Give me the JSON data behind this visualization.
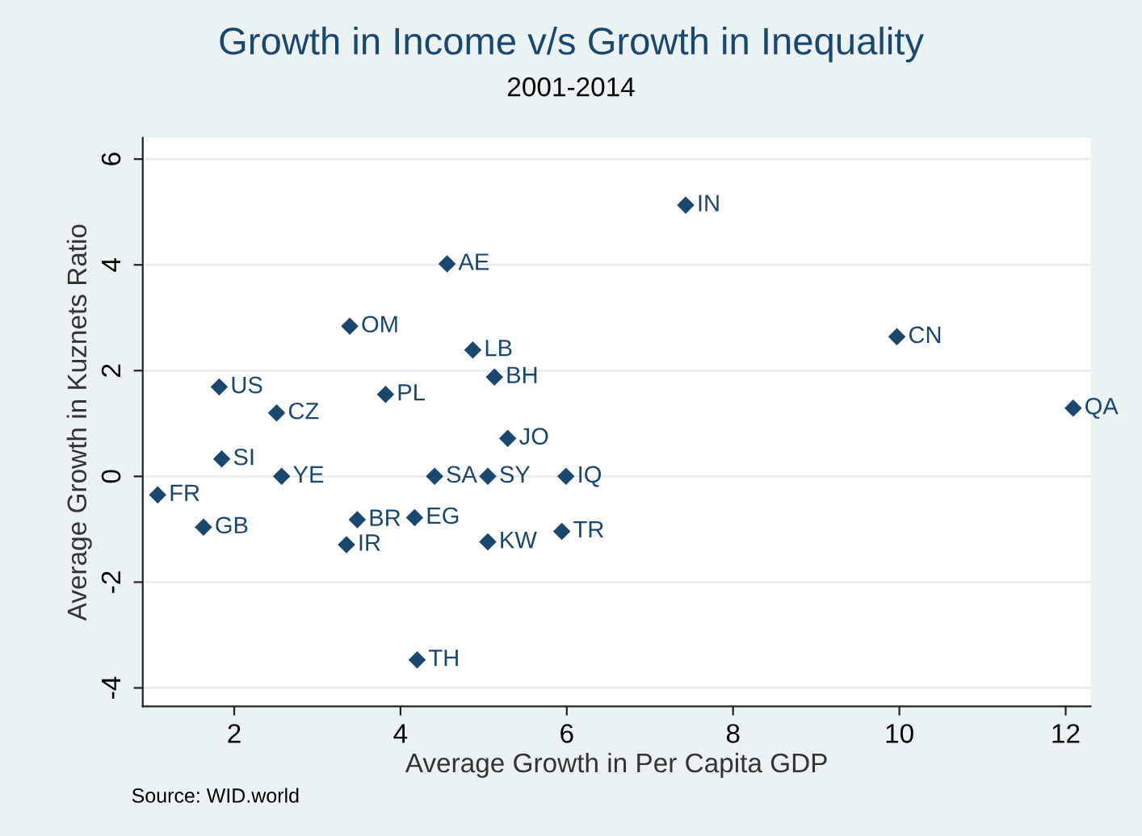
{
  "chart_data": {
    "type": "scatter",
    "title": "Growth in Income v/s Growth in Inequality",
    "subtitle": "2001-2014",
    "xlabel": "Average Growth in Per Capita GDP",
    "ylabel": "Average Growth in Kuznets Ratio",
    "x": [
      7.43,
      9.97,
      12.09,
      4.56,
      3.39,
      4.87,
      5.13,
      1.82,
      3.82,
      2.51,
      5.29,
      1.85,
      2.57,
      4.41,
      5.05,
      5.99,
      1.08,
      1.63,
      3.48,
      4.17,
      3.35,
      5.05,
      5.94,
      4.2
    ],
    "series": [
      {
        "color": "#1a476f",
        "values": [
          5.13,
          2.64,
          1.29,
          4.02,
          2.84,
          2.39,
          1.88,
          1.69,
          1.55,
          1.2,
          0.72,
          0.33,
          0,
          0,
          0,
          0,
          -0.35,
          -0.96,
          -0.82,
          -0.78,
          -1.29,
          -1.24,
          -1.04,
          -3.47
        ]
      }
    ],
    "annotations": [
      {
        "text": "IN",
        "x": 7.43,
        "y": 5.13
      },
      {
        "text": "CN",
        "x": 9.97,
        "y": 2.64
      },
      {
        "text": "QA",
        "x": 12.09,
        "y": 1.29
      },
      {
        "text": "AE",
        "x": 4.56,
        "y": 4.02
      },
      {
        "text": "OM",
        "x": 3.39,
        "y": 2.84
      },
      {
        "text": "LB",
        "x": 4.87,
        "y": 2.39
      },
      {
        "text": "BH",
        "x": 5.13,
        "y": 1.88
      },
      {
        "text": "US",
        "x": 1.82,
        "y": 1.69
      },
      {
        "text": "PL",
        "x": 3.82,
        "y": 1.55
      },
      {
        "text": "CZ",
        "x": 2.51,
        "y": 1.2
      },
      {
        "text": "JO",
        "x": 5.29,
        "y": 0.72
      },
      {
        "text": "SI",
        "x": 1.85,
        "y": 0.33
      },
      {
        "text": "YE",
        "x": 2.57,
        "y": 0
      },
      {
        "text": "SA",
        "x": 4.41,
        "y": 0
      },
      {
        "text": "SY",
        "x": 5.05,
        "y": 0
      },
      {
        "text": "IQ",
        "x": 5.99,
        "y": 0
      },
      {
        "text": "FR",
        "x": 1.08,
        "y": -0.35
      },
      {
        "text": "GB",
        "x": 1.63,
        "y": -0.96
      },
      {
        "text": "BR",
        "x": 3.48,
        "y": -0.82
      },
      {
        "text": "EG",
        "x": 4.17,
        "y": -0.78
      },
      {
        "text": "IR",
        "x": 3.35,
        "y": -1.29
      },
      {
        "text": "KW",
        "x": 5.05,
        "y": -1.24
      },
      {
        "text": "TR",
        "x": 5.94,
        "y": -1.04
      },
      {
        "text": "TH",
        "x": 4.2,
        "y": -3.47
      },
      "Source: WID.world"
    ],
    "xlim": [
      0.9,
      12.3
    ],
    "ylim": [
      -4.35,
      6.4
    ],
    "xticks": [
      2,
      4,
      6,
      8,
      10,
      12
    ],
    "yticks": [
      -4,
      -2,
      0,
      2,
      4,
      6
    ],
    "grid": "y",
    "marker": "diamond"
  }
}
